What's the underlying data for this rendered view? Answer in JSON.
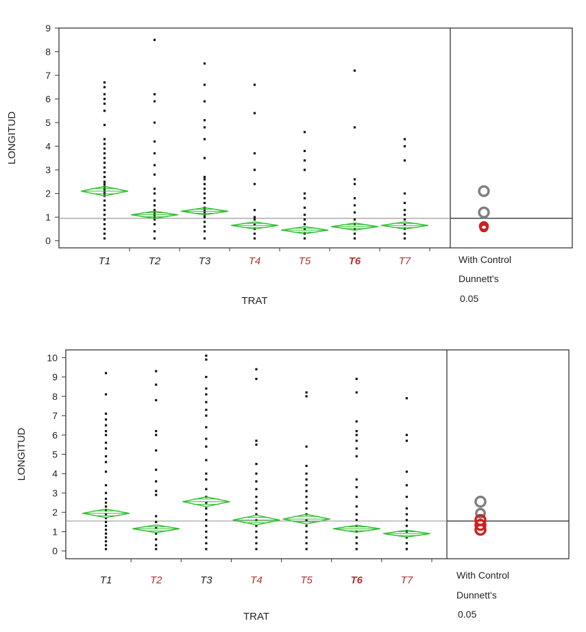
{
  "chart_data": [
    {
      "type": "scatter",
      "title": "",
      "xlabel": "TRAT",
      "ylabel": "LONGITUD",
      "ylim": [
        -0.3,
        9
      ],
      "yticks": [
        0,
        1,
        2,
        3,
        4,
        5,
        6,
        7,
        8,
        9
      ],
      "grand_mean": 0.95,
      "categories": [
        {
          "label": "T1",
          "color": "#222222",
          "bold": false,
          "mean": 2.1,
          "ci": 0.2,
          "points": [
            0.1,
            0.3,
            0.5,
            0.7,
            0.9,
            1.1,
            1.3,
            1.5,
            1.7,
            1.9,
            2.0,
            2.1,
            2.2,
            2.3,
            2.4,
            2.5,
            2.7,
            2.9,
            3.1,
            3.3,
            3.5,
            3.7,
            3.9,
            4.1,
            4.3,
            4.9,
            5.5,
            5.8,
            6.0,
            6.2,
            6.5,
            6.7
          ]
        },
        {
          "label": "T2",
          "color": "#222222",
          "bold": false,
          "mean": 1.1,
          "ci": 0.15,
          "points": [
            0.1,
            0.4,
            0.7,
            0.9,
            1.0,
            1.1,
            1.2,
            1.3,
            1.5,
            1.7,
            2.0,
            2.2,
            2.8,
            3.2,
            3.7,
            4.2,
            5.0,
            5.9,
            6.2,
            8.5
          ]
        },
        {
          "label": "T3",
          "color": "#222222",
          "bold": false,
          "mean": 1.25,
          "ci": 0.15,
          "points": [
            0.1,
            0.4,
            0.6,
            0.8,
            1.0,
            1.1,
            1.2,
            1.3,
            1.4,
            1.6,
            1.8,
            2.0,
            2.2,
            2.4,
            2.6,
            2.7,
            3.5,
            4.3,
            4.8,
            5.1,
            5.9,
            6.6,
            7.5
          ]
        },
        {
          "label": "T4",
          "color": "#b03030",
          "bold": false,
          "mean": 0.65,
          "ci": 0.15,
          "points": [
            0.1,
            0.3,
            0.5,
            0.7,
            0.9,
            1.0,
            1.3,
            2.4,
            3.0,
            3.7,
            5.4,
            6.6
          ]
        },
        {
          "label": "T5",
          "color": "#b03030",
          "bold": false,
          "mean": 0.45,
          "ci": 0.15,
          "points": [
            0.1,
            0.3,
            0.5,
            0.7,
            0.9,
            1.1,
            1.4,
            1.8,
            2.0,
            3.0,
            3.4,
            3.8,
            4.6
          ]
        },
        {
          "label": "T6",
          "color": "#b03030",
          "bold": true,
          "mean": 0.6,
          "ci": 0.15,
          "points": [
            0.1,
            0.3,
            0.5,
            0.7,
            0.9,
            1.2,
            1.5,
            1.8,
            2.4,
            2.6,
            4.8,
            7.2
          ]
        },
        {
          "label": "T7",
          "color": "#b03030",
          "bold": false,
          "mean": 0.65,
          "ci": 0.15,
          "points": [
            0.1,
            0.3,
            0.5,
            0.7,
            0.9,
            1.1,
            1.3,
            1.6,
            2.0,
            3.4,
            4.0,
            4.3
          ]
        }
      ],
      "comparison": {
        "lines": [
          "With Control",
          "Dunnett's",
          "0.05"
        ],
        "circles": [
          {
            "center": 2.1,
            "radius": 0.2,
            "color": "#808080"
          },
          {
            "center": 1.2,
            "radius": 0.2,
            "color": "#808080"
          },
          {
            "center": 0.62,
            "radius": 0.16,
            "color": "#cc2020"
          },
          {
            "center": 0.55,
            "radius": 0.14,
            "color": "#cc2020"
          }
        ]
      }
    },
    {
      "type": "scatter",
      "title": "",
      "xlabel": "TRAT",
      "ylabel": "LONGITUD",
      "ylim": [
        -0.4,
        10.4
      ],
      "yticks": [
        0,
        1,
        2,
        3,
        4,
        5,
        6,
        7,
        8,
        9,
        10
      ],
      "grand_mean": 1.55,
      "categories": [
        {
          "label": "T1",
          "color": "#222222",
          "bold": false,
          "mean": 1.95,
          "ci": 0.22,
          "points": [
            0.1,
            0.3,
            0.5,
            0.7,
            0.9,
            1.1,
            1.3,
            1.5,
            1.7,
            1.9,
            2.1,
            2.3,
            2.5,
            2.7,
            3.0,
            3.4,
            4.1,
            4.6,
            4.9,
            5.3,
            5.6,
            6.0,
            6.2,
            6.5,
            6.8,
            7.1,
            8.1,
            9.2
          ]
        },
        {
          "label": "T2",
          "color": "#b03030",
          "bold": false,
          "mean": 1.15,
          "ci": 0.2,
          "points": [
            0.1,
            0.3,
            0.6,
            0.9,
            1.2,
            1.5,
            1.8,
            2.9,
            3.1,
            3.6,
            4.2,
            5.2,
            6.0,
            6.2,
            7.8,
            8.6,
            9.3
          ]
        },
        {
          "label": "T3",
          "color": "#222222",
          "bold": false,
          "mean": 2.55,
          "ci": 0.25,
          "points": [
            0.1,
            0.4,
            0.7,
            1.0,
            1.3,
            1.6,
            1.9,
            2.2,
            2.5,
            2.8,
            3.2,
            3.7,
            4.0,
            4.7,
            5.4,
            5.8,
            6.4,
            7.0,
            7.3,
            7.7,
            8.1,
            8.4,
            9.0,
            9.9,
            10.1
          ]
        },
        {
          "label": "T4",
          "color": "#b03030",
          "bold": false,
          "mean": 1.6,
          "ci": 0.25,
          "points": [
            0.1,
            0.4,
            0.7,
            1.0,
            1.3,
            1.6,
            1.9,
            2.2,
            2.5,
            2.8,
            3.2,
            3.6,
            4.0,
            4.5,
            5.5,
            5.7,
            8.9,
            9.4
          ]
        },
        {
          "label": "T5",
          "color": "#b03030",
          "bold": false,
          "mean": 1.65,
          "ci": 0.25,
          "points": [
            0.1,
            0.4,
            0.7,
            1.0,
            1.3,
            1.6,
            1.9,
            2.2,
            2.5,
            2.8,
            3.1,
            3.4,
            3.7,
            4.0,
            4.4,
            5.4,
            8.0,
            8.2
          ]
        },
        {
          "label": "T6",
          "color": "#b03030",
          "bold": true,
          "mean": 1.15,
          "ci": 0.18,
          "points": [
            0.1,
            0.4,
            0.7,
            1.0,
            1.3,
            1.6,
            1.9,
            2.3,
            2.8,
            3.3,
            3.7,
            4.9,
            5.3,
            5.7,
            6.0,
            6.2,
            6.7,
            8.2,
            8.9
          ]
        },
        {
          "label": "T7",
          "color": "#b03030",
          "bold": false,
          "mean": 0.9,
          "ci": 0.18,
          "points": [
            0.1,
            0.4,
            0.7,
            1.0,
            1.3,
            1.6,
            1.9,
            2.2,
            2.8,
            3.4,
            4.1,
            5.7,
            6.0,
            7.9
          ]
        }
      ],
      "comparison": {
        "lines": [
          "With Control",
          "Dunnett's",
          "0.05"
        ],
        "circles": [
          {
            "center": 2.55,
            "radius": 0.25,
            "color": "#808080"
          },
          {
            "center": 1.95,
            "radius": 0.22,
            "color": "#808080"
          },
          {
            "center": 1.6,
            "radius": 0.25,
            "color": "#cc2020"
          },
          {
            "center": 1.35,
            "radius": 0.25,
            "color": "#cc2020"
          },
          {
            "center": 1.1,
            "radius": 0.25,
            "color": "#cc2020"
          }
        ]
      }
    }
  ]
}
